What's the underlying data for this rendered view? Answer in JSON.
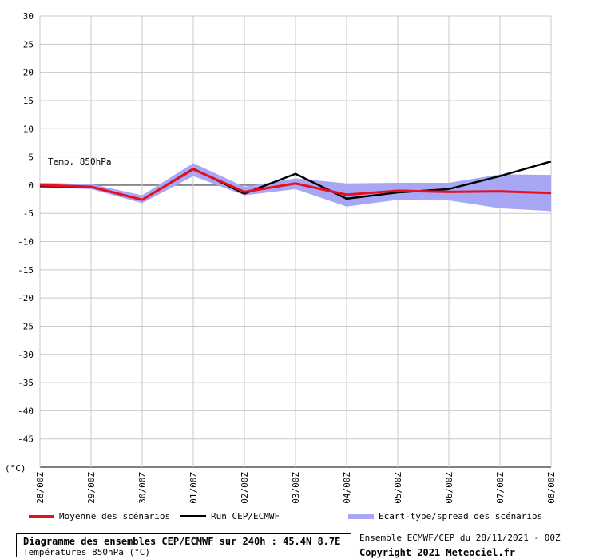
{
  "chart_data": {
    "type": "line",
    "annotation": "Temp. 850hPa",
    "ylabel": "(°C)",
    "ylim": [
      -50,
      30
    ],
    "yticks": [
      30,
      25,
      20,
      15,
      10,
      5,
      0,
      -5,
      -10,
      -15,
      -20,
      -25,
      -30,
      -35,
      -40,
      -45
    ],
    "grid": true,
    "categories": [
      "28/00Z",
      "29/00Z",
      "30/00Z",
      "01/00Z",
      "02/00Z",
      "03/00Z",
      "04/00Z",
      "05/00Z",
      "06/00Z",
      "07/00Z",
      "08/00Z"
    ],
    "series": [
      {
        "name": "Moyenne des scénarios",
        "color": "#e8101e",
        "values": [
          0.0,
          -0.3,
          -2.6,
          2.8,
          -1.2,
          0.3,
          -1.7,
          -1.0,
          -1.2,
          -1.1,
          -1.4
        ]
      },
      {
        "name": "Run CEP/ECMWF",
        "color": "#000000",
        "values": [
          -0.2,
          -0.3,
          -2.6,
          2.9,
          -1.5,
          2.0,
          -2.4,
          -1.3,
          -0.7,
          1.6,
          4.2
        ]
      },
      {
        "name": "Ecart-type/spread des scénarios",
        "color": "#a7a7f5",
        "upper": [
          0.4,
          0.2,
          -1.8,
          3.9,
          -0.3,
          1.2,
          0.3,
          0.4,
          0.4,
          1.9,
          1.8
        ],
        "lower": [
          -0.4,
          -0.7,
          -3.2,
          1.6,
          -1.8,
          -0.7,
          -3.8,
          -2.6,
          -2.7,
          -4.1,
          -4.6
        ]
      }
    ]
  },
  "footer": {
    "title": "Diagramme des ensembles CEP/ECMWF sur 240h : 45.4N 8.7E",
    "subtitle": "Températures 850hPa (°C)",
    "ensemble": "Ensemble ECMWF/CEP du 28/11/2021 - 00Z",
    "copyright": "Copyright 2021 Meteociel.fr"
  }
}
